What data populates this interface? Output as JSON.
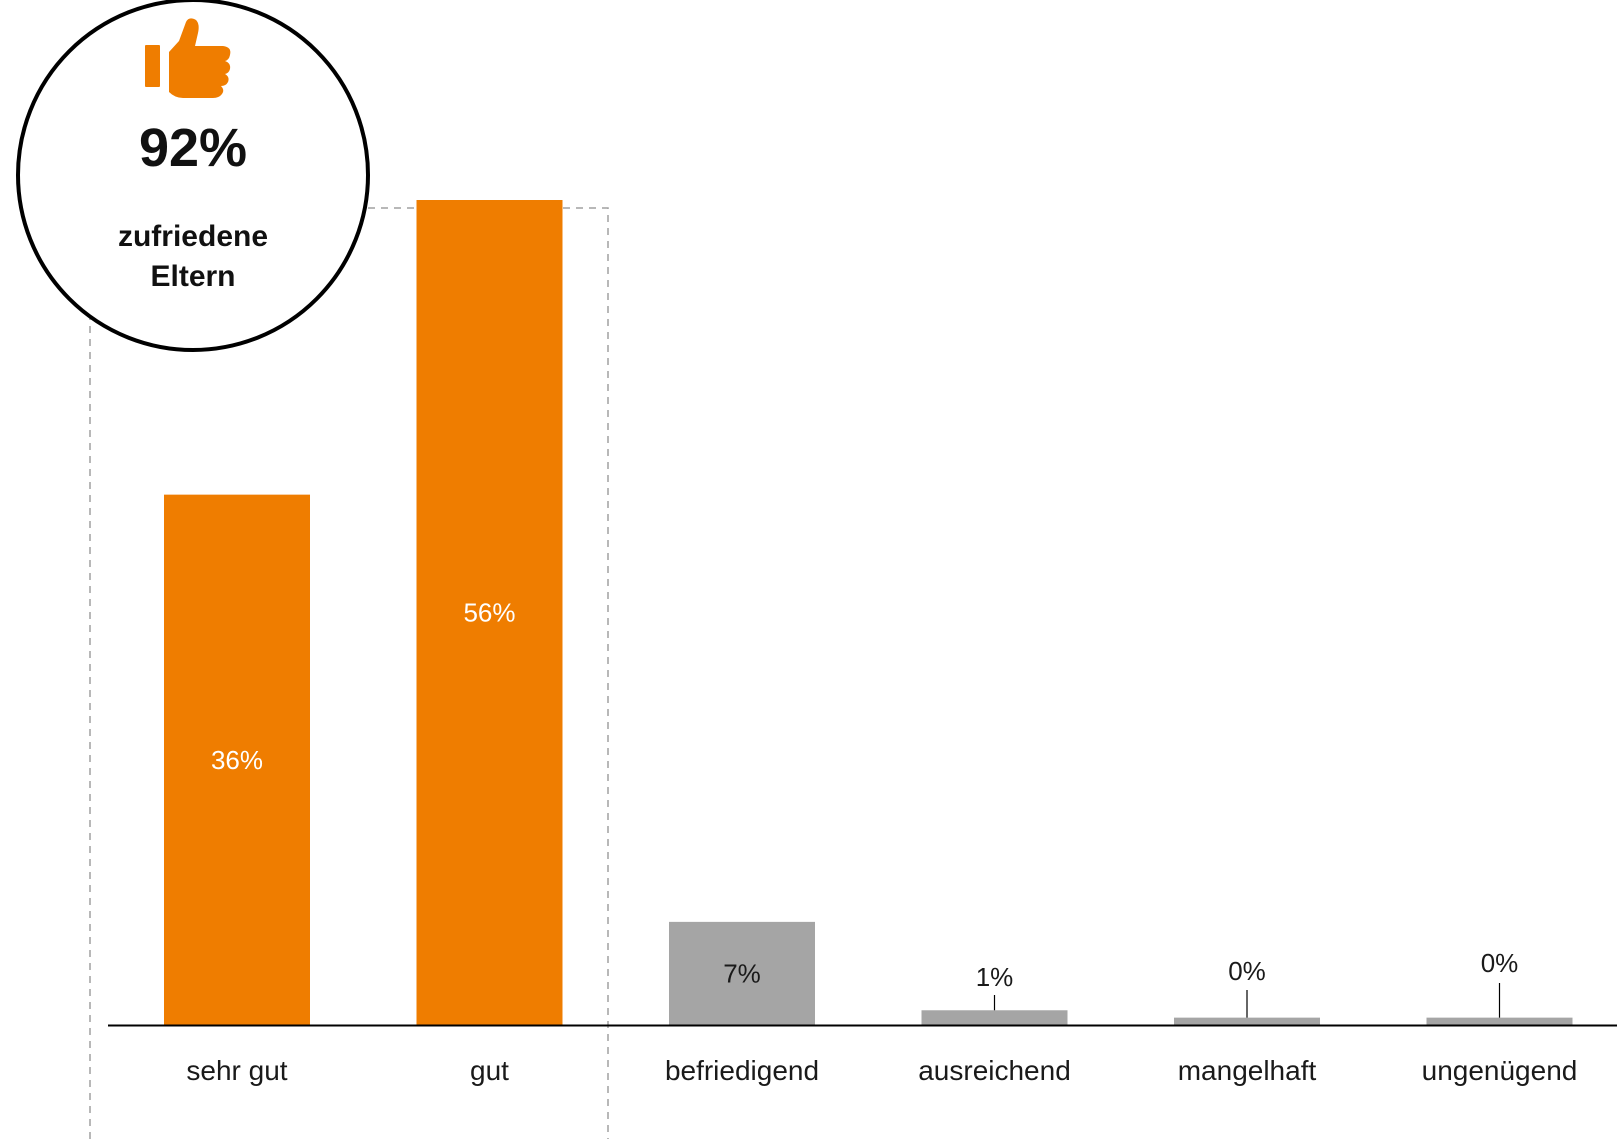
{
  "colors": {
    "accent": "#EF7D00",
    "neutral": "#A5A5A5",
    "axis": "#000000",
    "box_dash": "#A0A0A0"
  },
  "badge": {
    "icon": "thumbs-up-icon",
    "percent": "92%",
    "line1": "zufriedene",
    "line2": "Eltern"
  },
  "chart_data": {
    "type": "bar",
    "title": "",
    "xlabel": "",
    "ylabel": "",
    "ylim": [
      0,
      58
    ],
    "grid": false,
    "legend": "none",
    "categories": [
      "sehr gut",
      "gut",
      "befriedigend",
      "ausreichend",
      "mangelhaft",
      "ungenügend"
    ],
    "values": [
      36,
      56,
      7,
      1,
      0.5,
      0.5
    ],
    "value_labels": [
      "36%",
      "56%",
      "7%",
      "1%",
      "0%",
      "0%"
    ],
    "highlighted": [
      "sehr gut",
      "gut"
    ]
  }
}
